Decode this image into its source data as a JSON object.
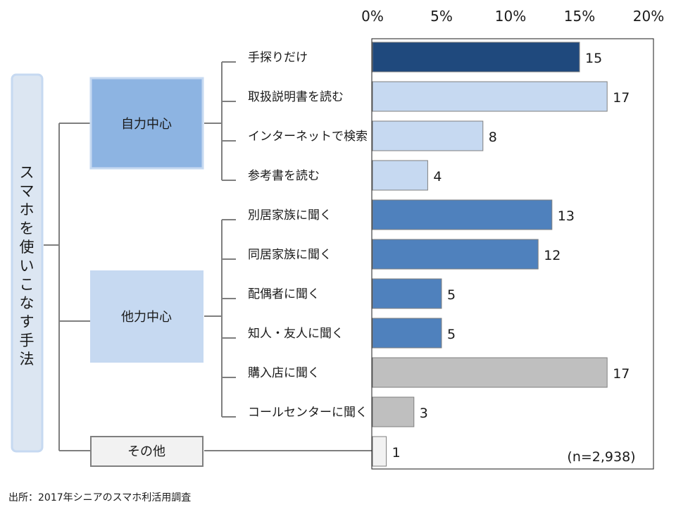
{
  "vertical_title": "スマホを使いこなす手法",
  "groups": [
    {
      "label": "自力中心",
      "color": "#8db4e2"
    },
    {
      "label": "他力中心",
      "color": "#c6d9f1"
    },
    {
      "label": "その他",
      "color": "#f2f2f2"
    }
  ],
  "chart_data": {
    "type": "bar",
    "orientation": "horizontal",
    "categories": [
      "手探りだけ",
      "取扱説明書を読む",
      "インターネットで検索",
      "参考書を読む",
      "別居家族に聞く",
      "同居家族に聞く",
      "配偶者に聞く",
      "知人・友人に聞く",
      "購入店に聞く",
      "コールセンターに聞く",
      "その他"
    ],
    "values": [
      15,
      17,
      8,
      4,
      13,
      12,
      5,
      5,
      17,
      3,
      1
    ],
    "value_labels": [
      "15",
      "17",
      "8",
      "4",
      "13",
      "12",
      "5",
      "5",
      "17",
      "3",
      "1"
    ],
    "bar_colors": [
      "#1f497d",
      "#c6d9f1",
      "#c6d9f1",
      "#c6d9f1",
      "#4f81bd",
      "#4f81bd",
      "#4f81bd",
      "#4f81bd",
      "#bfbfbf",
      "#bfbfbf",
      "#f2f2f2"
    ],
    "xlim": [
      0,
      20
    ],
    "xticks": [
      0,
      5,
      10,
      15,
      20
    ],
    "xtick_labels": [
      "0%",
      "5%",
      "10%",
      "15%",
      "20%"
    ],
    "xaxis_position": "top",
    "grid": false,
    "note": "(n=2,938)"
  },
  "source": "出所：2017年シニアのスマホ利活用調査"
}
